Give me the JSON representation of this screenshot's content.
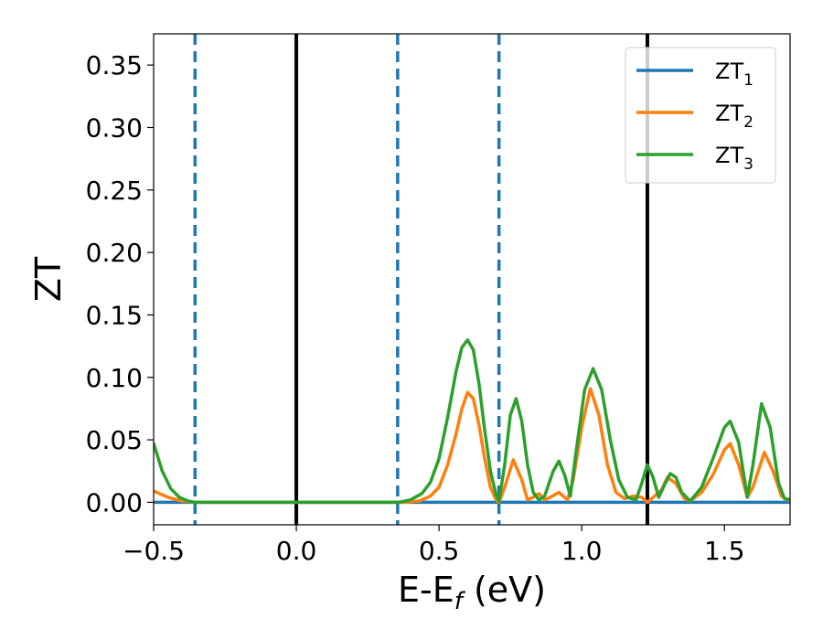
{
  "chart_data": {
    "type": "line",
    "xlabel_main": "E-E",
    "xlabel_sub": "f",
    "xlabel_tail": " (eV)",
    "ylabel": "ZT",
    "xlim": [
      -0.5,
      1.73
    ],
    "ylim": [
      -0.018,
      0.375
    ],
    "grid": false,
    "legend_position": "top-right",
    "x_ticks": [
      {
        "value": -0.5,
        "label": "−0.5"
      },
      {
        "value": 0.0,
        "label": "0.0"
      },
      {
        "value": 0.5,
        "label": "0.5"
      },
      {
        "value": 1.0,
        "label": "1.0"
      },
      {
        "value": 1.5,
        "label": "1.5"
      }
    ],
    "y_ticks": [
      {
        "value": 0.0,
        "label": "0.00"
      },
      {
        "value": 0.05,
        "label": "0.05"
      },
      {
        "value": 0.1,
        "label": "0.10"
      },
      {
        "value": 0.15,
        "label": "0.15"
      },
      {
        "value": 0.2,
        "label": "0.20"
      },
      {
        "value": 0.25,
        "label": "0.25"
      },
      {
        "value": 0.3,
        "label": "0.30"
      },
      {
        "value": 0.35,
        "label": "0.35"
      }
    ],
    "vertical_lines": [
      {
        "x": -0.355,
        "style": "dashed",
        "color": "#1f77b4"
      },
      {
        "x": 0.0,
        "style": "solid",
        "color": "#000000"
      },
      {
        "x": 0.355,
        "style": "dashed",
        "color": "#1f77b4"
      },
      {
        "x": 0.71,
        "style": "dashed",
        "color": "#1f77b4"
      },
      {
        "x": 1.23,
        "style": "solid",
        "color": "#000000"
      }
    ],
    "series": [
      {
        "name": "ZT",
        "subscript": "1",
        "color": "#1f77b4",
        "points": [
          [
            -0.5,
            0.0
          ],
          [
            1.73,
            0.0
          ]
        ]
      },
      {
        "name": "ZT",
        "subscript": "2",
        "color": "#ff7f0e",
        "points": [
          [
            -0.5,
            0.009
          ],
          [
            -0.45,
            0.004
          ],
          [
            -0.4,
            0.001
          ],
          [
            -0.355,
            0.0
          ],
          [
            0.0,
            0.0
          ],
          [
            0.38,
            0.0
          ],
          [
            0.43,
            0.001
          ],
          [
            0.47,
            0.005
          ],
          [
            0.5,
            0.012
          ],
          [
            0.53,
            0.03
          ],
          [
            0.56,
            0.055
          ],
          [
            0.58,
            0.075
          ],
          [
            0.6,
            0.088
          ],
          [
            0.62,
            0.083
          ],
          [
            0.64,
            0.062
          ],
          [
            0.66,
            0.035
          ],
          [
            0.68,
            0.012
          ],
          [
            0.7,
            0.002
          ],
          [
            0.71,
            0.0
          ],
          [
            0.73,
            0.012
          ],
          [
            0.76,
            0.034
          ],
          [
            0.79,
            0.018
          ],
          [
            0.81,
            0.002
          ],
          [
            0.83,
            0.004
          ],
          [
            0.85,
            0.007
          ],
          [
            0.87,
            0.002
          ],
          [
            0.89,
            0.004
          ],
          [
            0.92,
            0.008
          ],
          [
            0.95,
            0.002
          ],
          [
            0.97,
            0.018
          ],
          [
            1.0,
            0.06
          ],
          [
            1.03,
            0.091
          ],
          [
            1.06,
            0.07
          ],
          [
            1.09,
            0.03
          ],
          [
            1.12,
            0.008
          ],
          [
            1.15,
            0.003
          ],
          [
            1.18,
            0.005
          ],
          [
            1.21,
            0.004
          ],
          [
            1.23,
            0.0
          ],
          [
            1.25,
            0.004
          ],
          [
            1.28,
            0.01
          ],
          [
            1.3,
            0.02
          ],
          [
            1.33,
            0.015
          ],
          [
            1.36,
            0.003
          ],
          [
            1.38,
            0.001
          ],
          [
            1.42,
            0.008
          ],
          [
            1.46,
            0.022
          ],
          [
            1.5,
            0.042
          ],
          [
            1.52,
            0.047
          ],
          [
            1.55,
            0.03
          ],
          [
            1.58,
            0.004
          ],
          [
            1.6,
            0.012
          ],
          [
            1.64,
            0.04
          ],
          [
            1.67,
            0.025
          ],
          [
            1.7,
            0.005
          ],
          [
            1.73,
            0.001
          ]
        ]
      },
      {
        "name": "ZT",
        "subscript": "3",
        "color": "#2ca02c",
        "points": [
          [
            -0.5,
            0.047
          ],
          [
            -0.47,
            0.025
          ],
          [
            -0.44,
            0.011
          ],
          [
            -0.41,
            0.004
          ],
          [
            -0.38,
            0.001
          ],
          [
            -0.355,
            0.0
          ],
          [
            0.0,
            0.0
          ],
          [
            0.36,
            0.0
          ],
          [
            0.4,
            0.002
          ],
          [
            0.44,
            0.007
          ],
          [
            0.47,
            0.016
          ],
          [
            0.5,
            0.035
          ],
          [
            0.53,
            0.068
          ],
          [
            0.56,
            0.105
          ],
          [
            0.58,
            0.124
          ],
          [
            0.6,
            0.13
          ],
          [
            0.62,
            0.122
          ],
          [
            0.64,
            0.095
          ],
          [
            0.66,
            0.058
          ],
          [
            0.68,
            0.025
          ],
          [
            0.7,
            0.006
          ],
          [
            0.71,
            0.001
          ],
          [
            0.73,
            0.03
          ],
          [
            0.75,
            0.07
          ],
          [
            0.77,
            0.083
          ],
          [
            0.79,
            0.065
          ],
          [
            0.81,
            0.03
          ],
          [
            0.83,
            0.008
          ],
          [
            0.85,
            0.002
          ],
          [
            0.87,
            0.005
          ],
          [
            0.9,
            0.025
          ],
          [
            0.92,
            0.033
          ],
          [
            0.94,
            0.022
          ],
          [
            0.96,
            0.005
          ],
          [
            0.98,
            0.04
          ],
          [
            1.01,
            0.09
          ],
          [
            1.04,
            0.107
          ],
          [
            1.07,
            0.09
          ],
          [
            1.1,
            0.05
          ],
          [
            1.13,
            0.018
          ],
          [
            1.16,
            0.004
          ],
          [
            1.19,
            0.002
          ],
          [
            1.21,
            0.015
          ],
          [
            1.23,
            0.03
          ],
          [
            1.25,
            0.02
          ],
          [
            1.27,
            0.004
          ],
          [
            1.29,
            0.014
          ],
          [
            1.31,
            0.023
          ],
          [
            1.33,
            0.02
          ],
          [
            1.35,
            0.008
          ],
          [
            1.38,
            0.001
          ],
          [
            1.42,
            0.012
          ],
          [
            1.46,
            0.035
          ],
          [
            1.5,
            0.06
          ],
          [
            1.52,
            0.065
          ],
          [
            1.55,
            0.048
          ],
          [
            1.58,
            0.004
          ],
          [
            1.6,
            0.03
          ],
          [
            1.63,
            0.079
          ],
          [
            1.66,
            0.06
          ],
          [
            1.69,
            0.015
          ],
          [
            1.71,
            0.003
          ],
          [
            1.73,
            0.002
          ]
        ]
      }
    ]
  }
}
